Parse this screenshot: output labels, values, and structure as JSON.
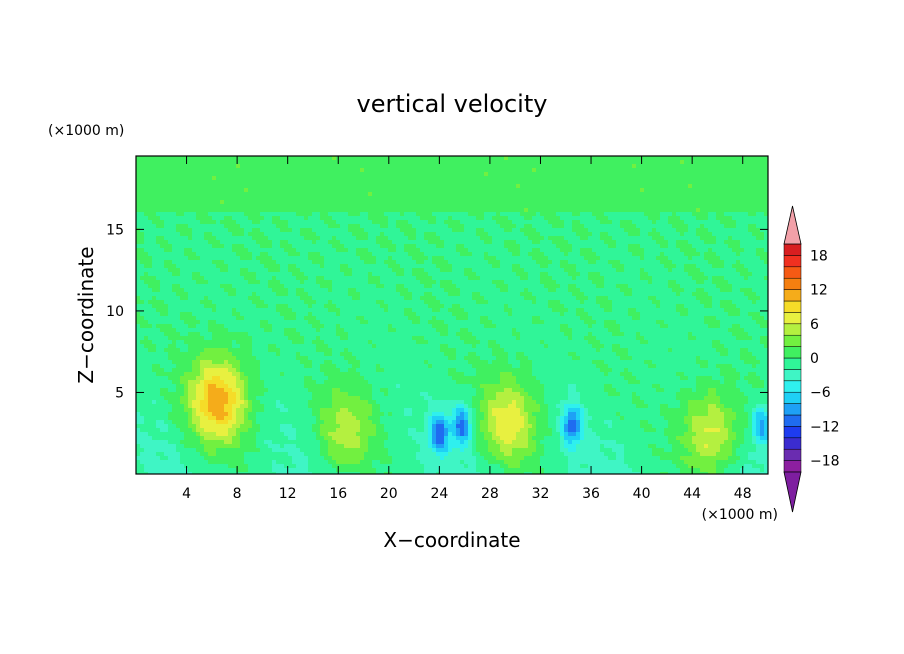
{
  "chart_data": {
    "type": "heatmap",
    "title": "vertical velocity",
    "xlabel": "X−coordinate",
    "ylabel": "Z−coordinate",
    "x_unit_label": "(×1000 m)",
    "y_unit_label": "(×1000 m)",
    "xlim": [
      0,
      50
    ],
    "ylim": [
      0,
      19.5
    ],
    "x_ticks": [
      4,
      8,
      12,
      16,
      20,
      24,
      28,
      32,
      36,
      40,
      44,
      48
    ],
    "x_tick_labels": [
      "4",
      "8",
      "12",
      "16",
      "20",
      "24",
      "28",
      "32",
      "36",
      "40",
      "44",
      "48"
    ],
    "y_ticks": [
      5,
      10,
      15
    ],
    "y_tick_labels": [
      "5",
      "10",
      "15"
    ],
    "colorbar": {
      "min": -20,
      "max": 20,
      "step": 2,
      "tick_values": [
        18,
        12,
        6,
        0,
        -6,
        -12,
        -18
      ],
      "tick_labels": [
        "18",
        "12",
        "6",
        "0",
        "−6",
        "−12",
        "−18"
      ],
      "colors": [
        "#8c1fa0",
        "#6a2cb0",
        "#3b2ccf",
        "#1e3cf0",
        "#1f6cf0",
        "#1ea0f5",
        "#1fd0f5",
        "#2ff0ee",
        "#3ff5c5",
        "#30f598",
        "#40f060",
        "#72f040",
        "#b4f040",
        "#e8f040",
        "#f5dc28",
        "#f5ac1a",
        "#f57f10",
        "#f55a14",
        "#f03020",
        "#d81e20"
      ],
      "over_color": "#f2a0a8",
      "under_color": "#7e1ea0"
    },
    "features": [
      {
        "kind": "updraft",
        "x": 6.5,
        "z": 4.5,
        "peak": 12
      },
      {
        "kind": "updraft",
        "x": 16.5,
        "z": 2.5,
        "peak": 6
      },
      {
        "kind": "updraft",
        "x": 29.5,
        "z": 3.2,
        "peak": 8
      },
      {
        "kind": "updraft",
        "x": 45.5,
        "z": 2.5,
        "peak": 8
      },
      {
        "kind": "downdraft",
        "x": 24.0,
        "z": 2.5,
        "peak": -10
      },
      {
        "kind": "downdraft",
        "x": 25.8,
        "z": 3.0,
        "peak": -10
      },
      {
        "kind": "downdraft",
        "x": 34.5,
        "z": 3.0,
        "peak": -10
      },
      {
        "kind": "downdraft",
        "x": 49.5,
        "z": 3.0,
        "peak": -8
      }
    ]
  }
}
